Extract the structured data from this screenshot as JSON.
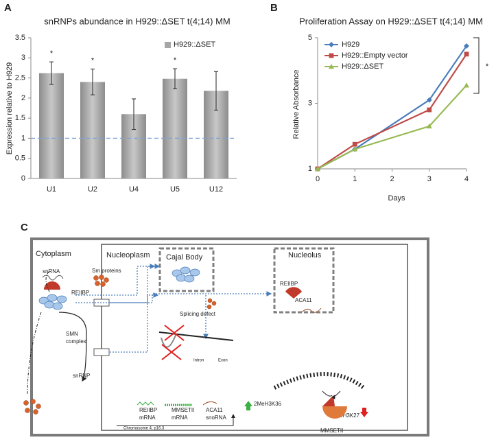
{
  "chart_data": [
    {
      "type": "bar",
      "panel_label": "A",
      "title": "snRNPs abundance in H929::ΔSET t(4;14) MM",
      "y_label": "Expression relative to H929",
      "categories": [
        "U1",
        "U2",
        "U4",
        "U5",
        "U12"
      ],
      "series": [
        {
          "name": "H929::ΔSET",
          "color": "#a6a6a6",
          "values": [
            2.62,
            2.4,
            1.6,
            2.48,
            2.18
          ],
          "errors": [
            0.28,
            0.32,
            0.38,
            0.25,
            0.48
          ]
        }
      ],
      "significance": [
        "*",
        "*",
        null,
        "*",
        null
      ],
      "reference_line": 1,
      "ylim": [
        0,
        3.5
      ],
      "yticks": [
        0,
        0.5,
        1,
        1.5,
        2,
        2.5,
        3,
        3.5
      ],
      "legend": "top-right"
    },
    {
      "type": "line",
      "panel_label": "B",
      "title": "Proliferation Assay on H929::ΔSET t(4;14) MM",
      "y_label": "Relative Absorbance",
      "x_label": "Days",
      "x": [
        0,
        1,
        3,
        4
      ],
      "series": [
        {
          "name": "H929",
          "color": "#4a7ebb",
          "marker": "diamond",
          "values": [
            1,
            1.6,
            3.1,
            4.75
          ]
        },
        {
          "name": "H929::Empty vector",
          "color": "#be4b48",
          "marker": "square",
          "values": [
            1,
            1.75,
            2.8,
            4.5
          ]
        },
        {
          "name": "H929::ΔSET",
          "color": "#98b954",
          "marker": "triangle",
          "values": [
            1,
            1.6,
            2.3,
            3.55
          ]
        }
      ],
      "annotation": "*",
      "xlim": [
        0,
        4
      ],
      "xticks": [
        0,
        1,
        2,
        3,
        4
      ],
      "ylim": [
        1,
        5
      ],
      "yticks": [
        1,
        3,
        5
      ],
      "legend": "top-left"
    }
  ],
  "diagram": {
    "panel_label": "C",
    "cytoplasm": "Cytoplasm",
    "snrna": "snRNA",
    "sm_proteins": "Sm proteins",
    "reiibp": "REIIBP",
    "smn_complex": [
      "SMN",
      "complex"
    ],
    "snrnp": "snRNP",
    "nucleoplasm": "Nucleoplasm",
    "cajal_body": "Cajal Body",
    "nucleolus": "Nucleolus",
    "nucleolus_reiibp": "REIIBP",
    "aca11": "ACA11",
    "splicing_defect": "Splicing defect",
    "intron": "Intron",
    "exon": "Exon",
    "h3k36": "2MeH3K36",
    "h3k27": "3MeH3K27",
    "mmsetii": "MMSETII",
    "reiibp_mrna": [
      "REIIBP",
      "mRNA"
    ],
    "mmsetii_mrna": [
      "MMSETII",
      "mRNA"
    ],
    "aca11_snorna": [
      "ACA11",
      "snoRNA"
    ],
    "chromosome": "Chromosome 4, p16.3"
  }
}
